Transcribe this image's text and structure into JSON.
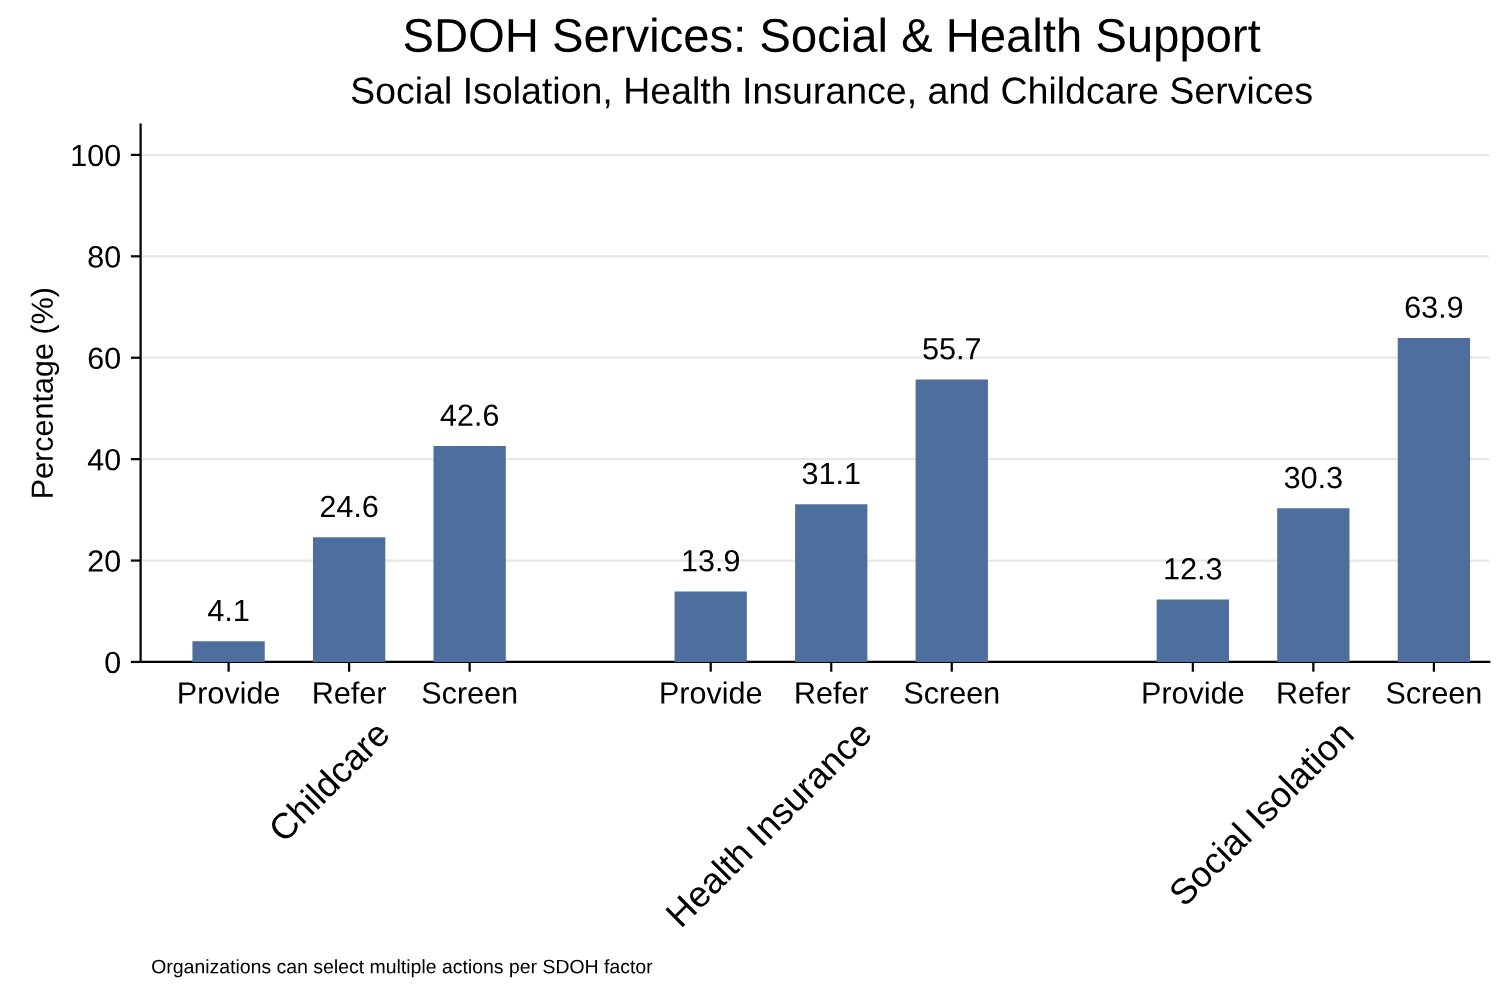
{
  "chart_data": {
    "type": "bar",
    "title": "SDOH Services: Social & Health Support",
    "subtitle": "Social Isolation, Health Insurance, and Childcare Services",
    "ylabel": "Percentage (%)",
    "categories": [
      "Provide",
      "Refer",
      "Screen",
      null,
      "Provide",
      "Refer",
      "Screen",
      null,
      "Provide",
      "Refer",
      "Screen"
    ],
    "values": [
      4.1,
      24.6,
      42.6,
      null,
      13.9,
      31.1,
      55.7,
      null,
      12.3,
      30.3,
      63.9
    ],
    "color": "#4e6f9e",
    "data_labels": true,
    "ylim": [
      0,
      106
    ],
    "yticks": [
      0,
      20,
      40,
      60,
      80,
      100
    ],
    "grid": "y",
    "annotations": [
      "Childcare",
      "Health Insurance",
      "Social Isolation",
      "Organizations can select multiple actions per SDOH factor"
    ]
  }
}
